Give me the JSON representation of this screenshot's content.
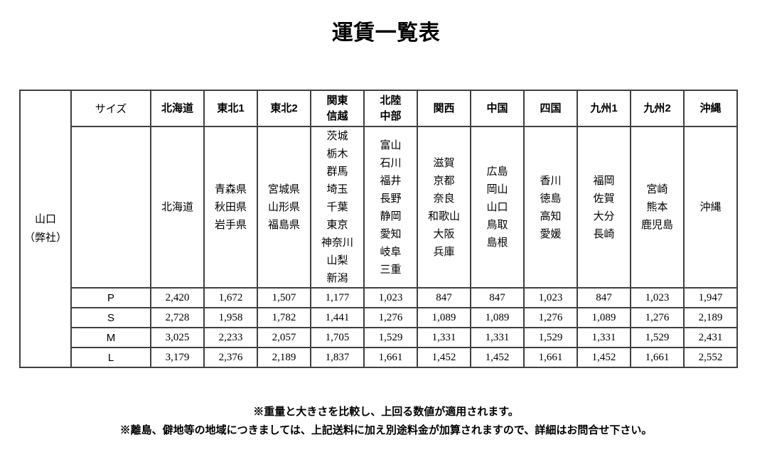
{
  "title": "運賃一覧表",
  "origin": {
    "lines": [
      "山口",
      "（弊社）"
    ]
  },
  "size_header": "サイズ",
  "columns": [
    {
      "name": "北海道",
      "prefectures": [
        "北海道"
      ],
      "highlight": true
    },
    {
      "name": "東北1",
      "prefectures": [
        "青森県",
        "秋田県",
        "岩手県"
      ],
      "highlight": false
    },
    {
      "name": "東北2",
      "prefectures": [
        "宮城県",
        "山形県",
        "福島県"
      ],
      "highlight": true
    },
    {
      "name": "関東信越",
      "name_lines": [
        "関東",
        "信越"
      ],
      "prefectures": [
        "茨城",
        "栃木",
        "群馬",
        "埼玉",
        "千葉",
        "東京",
        "神奈川",
        "山梨",
        "新潟"
      ],
      "highlight": false
    },
    {
      "name": "北陸中部",
      "name_lines": [
        "北陸",
        "中部"
      ],
      "prefectures": [
        "富山",
        "石川",
        "福井",
        "長野",
        "静岡",
        "愛知",
        "岐阜",
        "三重"
      ],
      "highlight": true
    },
    {
      "name": "関西",
      "prefectures": [
        "滋賀",
        "京都",
        "奈良",
        "和歌山",
        "大阪",
        "兵庫"
      ],
      "highlight": false
    },
    {
      "name": "中国",
      "prefectures": [
        "広島",
        "岡山",
        "山口",
        "鳥取",
        "島根"
      ],
      "highlight": true
    },
    {
      "name": "四国",
      "prefectures": [
        "香川",
        "徳島",
        "高知",
        "愛媛"
      ],
      "highlight": false
    },
    {
      "name": "九州1",
      "prefectures": [
        "福岡",
        "佐賀",
        "大分",
        "長崎"
      ],
      "highlight": true
    },
    {
      "name": "九州2",
      "prefectures": [
        "宮崎",
        "熊本",
        "鹿児島"
      ],
      "highlight": false
    },
    {
      "name": "沖縄",
      "prefectures": [
        "沖縄"
      ],
      "highlight": true
    }
  ],
  "rows": [
    {
      "size": "P",
      "values": [
        "2,420",
        "1,672",
        "1,507",
        "1,177",
        "1,023",
        "847",
        "847",
        "1,023",
        "847",
        "1,023",
        "1,947"
      ]
    },
    {
      "size": "S",
      "values": [
        "2,728",
        "1,958",
        "1,782",
        "1,441",
        "1,276",
        "1,089",
        "1,089",
        "1,276",
        "1,089",
        "1,276",
        "2,189"
      ]
    },
    {
      "size": "M",
      "values": [
        "3,025",
        "2,233",
        "2,057",
        "1,705",
        "1,529",
        "1,331",
        "1,331",
        "1,529",
        "1,331",
        "1,529",
        "2,431"
      ]
    },
    {
      "size": "L",
      "values": [
        "3,179",
        "2,376",
        "2,189",
        "1,837",
        "1,661",
        "1,452",
        "1,452",
        "1,661",
        "1,452",
        "1,661",
        "2,552"
      ]
    }
  ],
  "notes": [
    "※重量と大きさを比較し、上回る数値が適用されます。",
    "※離島、僻地等の地域につきましては、上記送料に加え別途料金が加算されますので、詳細はお問合せ下さい。"
  ],
  "colors": {
    "origin_bg": "#d4f94c",
    "highlight_bg": "#ffffcc",
    "border": "#404040"
  }
}
